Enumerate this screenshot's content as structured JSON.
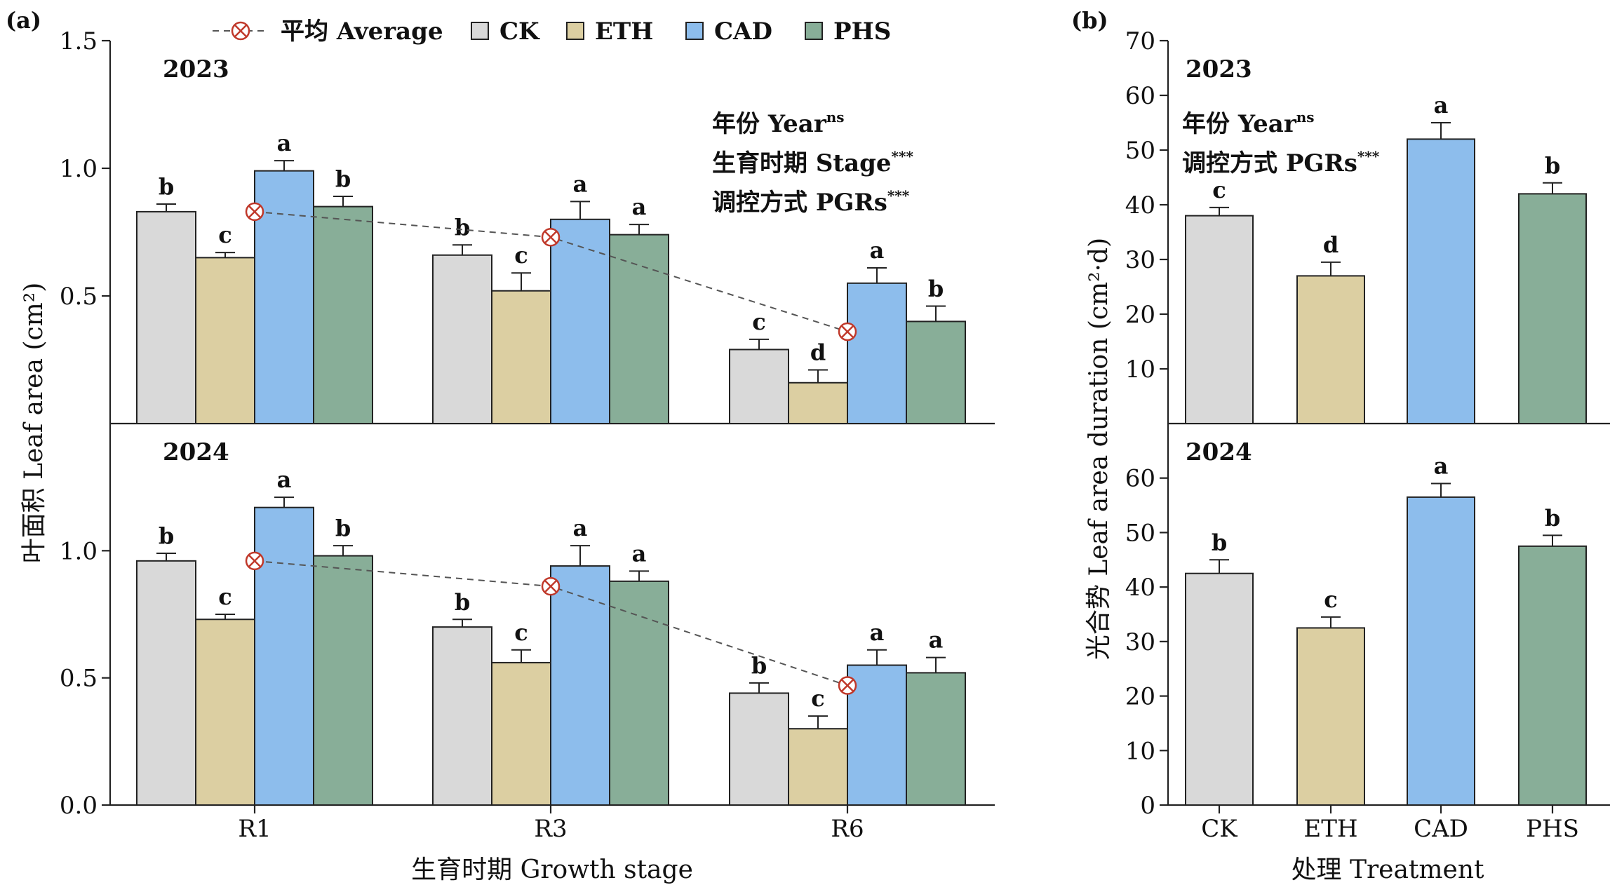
{
  "legend": {
    "average": "平均 Average",
    "ck": "CK",
    "eth": "ETH",
    "cad": "CAD",
    "phs": "PHS"
  },
  "colors": {
    "CK": "#d9d9d9",
    "ETH": "#dccfa2",
    "CAD": "#8dbdec",
    "PHS": "#88ae98",
    "average_marker": "#c0392b"
  },
  "panel_a": {
    "tag": "(a)",
    "ylabel": "叶面积 Leaf area (cm²)",
    "xlabel": "生育时期 Growth stage",
    "stats": [
      {
        "text": "年份 Year",
        "sup": "ns"
      },
      {
        "text": "生育时期 Stage",
        "sup": "***"
      },
      {
        "text": "调控方式 PGRs",
        "sup": "***"
      }
    ]
  },
  "panel_b": {
    "tag": "(b)",
    "ylabel": "光合势 Leaf area duration (cm²·d)",
    "xlabel": "处理 Treatment",
    "stats": [
      {
        "text": "年份 Year",
        "sup": "ns"
      },
      {
        "text": "调控方式 PGRs",
        "sup": "***"
      }
    ]
  },
  "chart_data": [
    {
      "type": "bar",
      "panel": "a",
      "subplot": "2023",
      "year_label": "2023",
      "categories": [
        "R1",
        "R3",
        "R6"
      ],
      "series": [
        {
          "name": "CK",
          "values": [
            0.83,
            0.66,
            0.29
          ],
          "errors": [
            0.03,
            0.04,
            0.04
          ],
          "letters": [
            "b",
            "b",
            "c"
          ]
        },
        {
          "name": "ETH",
          "values": [
            0.65,
            0.52,
            0.16
          ],
          "errors": [
            0.02,
            0.07,
            0.05
          ],
          "letters": [
            "c",
            "c",
            "d"
          ]
        },
        {
          "name": "CAD",
          "values": [
            0.99,
            0.8,
            0.55
          ],
          "errors": [
            0.04,
            0.07,
            0.06
          ],
          "letters": [
            "a",
            "a",
            "a"
          ]
        },
        {
          "name": "PHS",
          "values": [
            0.85,
            0.74,
            0.4
          ],
          "errors": [
            0.04,
            0.04,
            0.06
          ],
          "letters": [
            "b",
            "a",
            "b"
          ]
        }
      ],
      "average": [
        0.83,
        0.73,
        0.36
      ],
      "ylim": [
        0,
        1.5
      ],
      "yticks": [
        0.5,
        1.0,
        1.5
      ],
      "ytick_labels": [
        "0.5",
        "1.0",
        "1.5"
      ]
    },
    {
      "type": "bar",
      "panel": "a",
      "subplot": "2024",
      "year_label": "2024",
      "categories": [
        "R1",
        "R3",
        "R6"
      ],
      "series": [
        {
          "name": "CK",
          "values": [
            0.96,
            0.7,
            0.44
          ],
          "errors": [
            0.03,
            0.03,
            0.04
          ],
          "letters": [
            "b",
            "b",
            "b"
          ]
        },
        {
          "name": "ETH",
          "values": [
            0.73,
            0.56,
            0.3
          ],
          "errors": [
            0.02,
            0.05,
            0.05
          ],
          "letters": [
            "c",
            "c",
            "c"
          ]
        },
        {
          "name": "CAD",
          "values": [
            1.17,
            0.94,
            0.55
          ],
          "errors": [
            0.04,
            0.08,
            0.06
          ],
          "letters": [
            "a",
            "a",
            "a"
          ]
        },
        {
          "name": "PHS",
          "values": [
            0.98,
            0.88,
            0.52
          ],
          "errors": [
            0.04,
            0.04,
            0.06
          ],
          "letters": [
            "b",
            "a",
            "a"
          ]
        }
      ],
      "average": [
        0.96,
        0.86,
        0.47
      ],
      "ylim": [
        0,
        1.5
      ],
      "yticks": [
        0.0,
        0.5,
        1.0
      ],
      "ytick_labels": [
        "0.0",
        "0.5",
        "1.0"
      ]
    },
    {
      "type": "bar",
      "panel": "b",
      "subplot": "2023",
      "year_label": "2023",
      "categories": [
        "CK",
        "ETH",
        "CAD",
        "PHS"
      ],
      "values": [
        38,
        27,
        52,
        42
      ],
      "errors": [
        1.5,
        2.5,
        3.0,
        2.0
      ],
      "letters": [
        "c",
        "d",
        "a",
        "b"
      ],
      "ylim": [
        0,
        70
      ],
      "yticks": [
        10,
        20,
        30,
        40,
        50,
        60,
        70
      ],
      "ytick_labels": [
        "10",
        "20",
        "30",
        "40",
        "50",
        "60",
        "70"
      ]
    },
    {
      "type": "bar",
      "panel": "b",
      "subplot": "2024",
      "year_label": "2024",
      "categories": [
        "CK",
        "ETH",
        "CAD",
        "PHS"
      ],
      "values": [
        42.5,
        32.5,
        56.5,
        47.5
      ],
      "errors": [
        2.5,
        2.0,
        2.5,
        2.0
      ],
      "letters": [
        "b",
        "c",
        "a",
        "b"
      ],
      "ylim": [
        0,
        70
      ],
      "yticks": [
        0,
        10,
        20,
        30,
        40,
        50,
        60
      ],
      "ytick_labels": [
        "0",
        "10",
        "20",
        "30",
        "40",
        "50",
        "60"
      ]
    }
  ]
}
